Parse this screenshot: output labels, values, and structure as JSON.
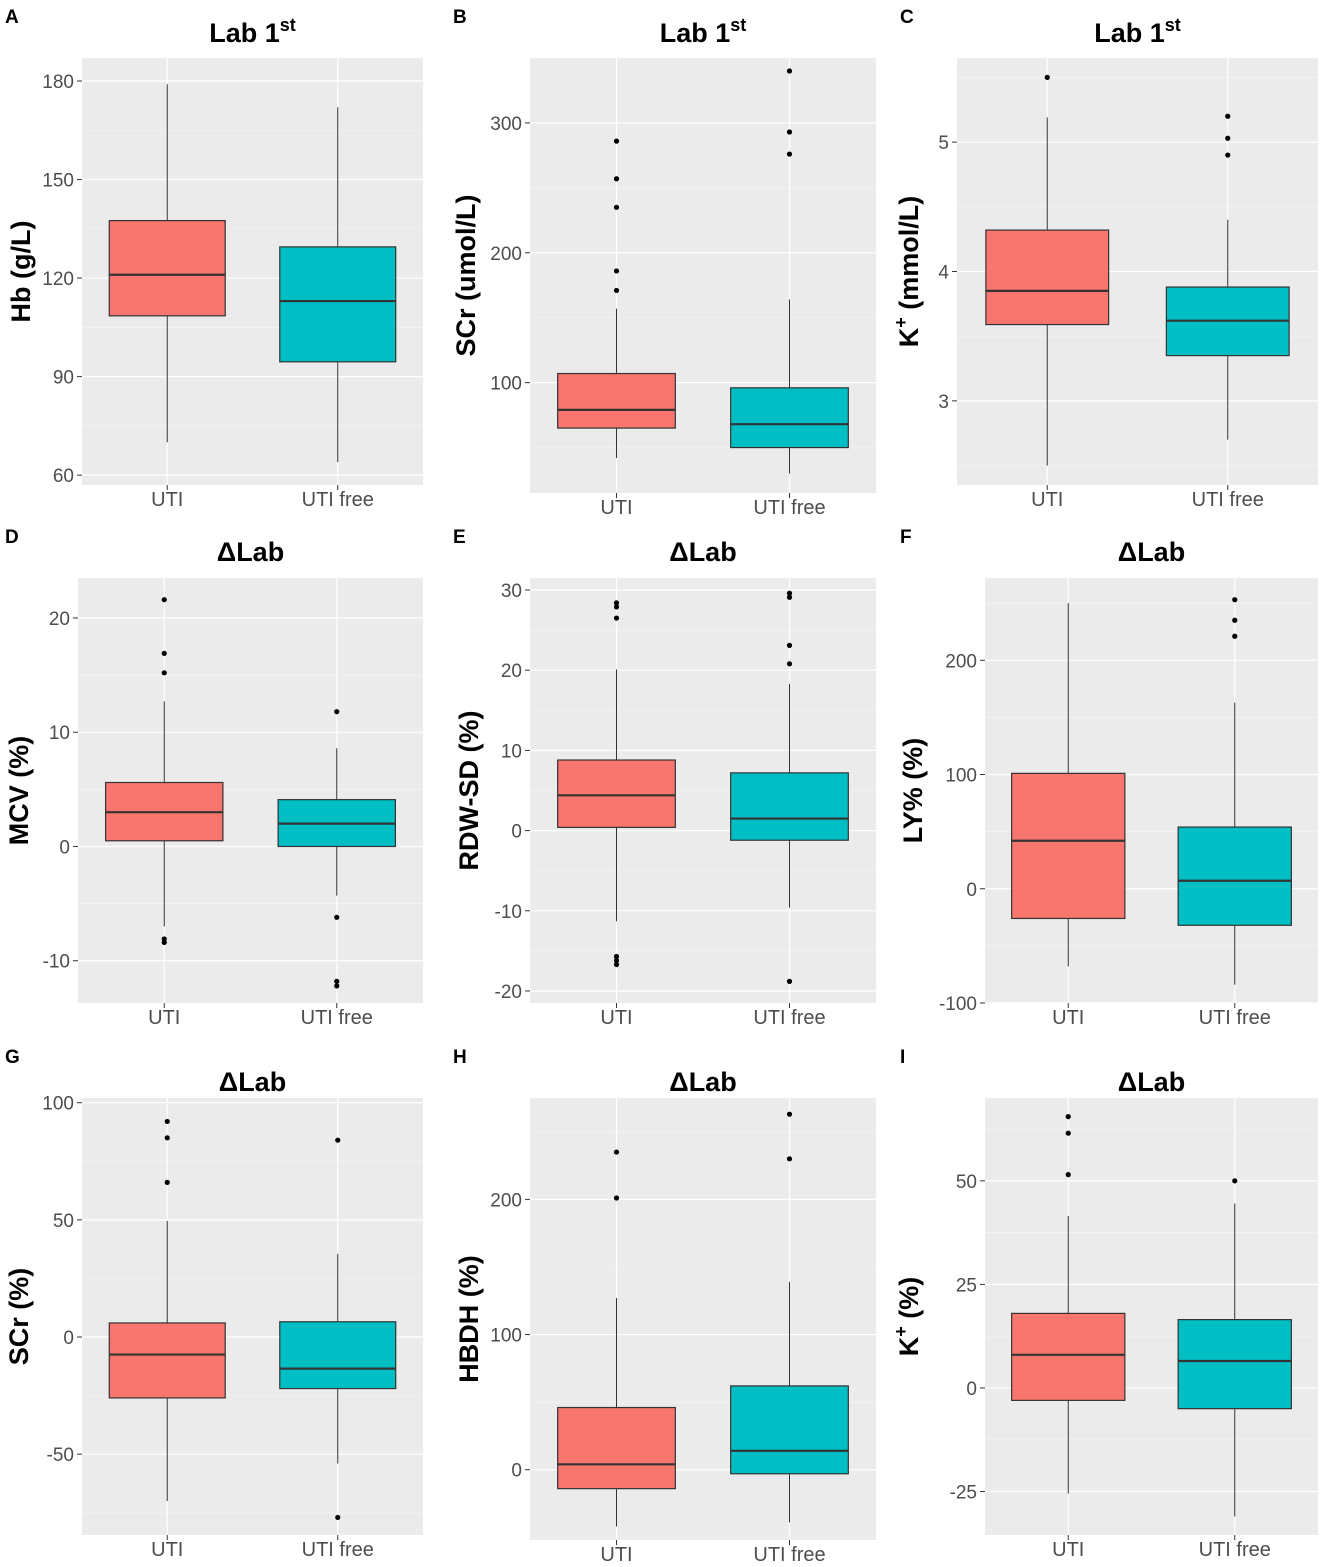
{
  "colors": {
    "uti": "#F8766D",
    "uti_free": "#00BFC4",
    "panel_bg": "#EBEBEB",
    "grid": "#FFFFFF"
  },
  "chart_data": [
    {
      "letter": "A",
      "type": "box",
      "title": "Lab 1st",
      "title_base": "Lab 1",
      "title_sup": "st",
      "ylabel": "Hb  (g/L)",
      "ylabel_base": "Hb  (g/L)",
      "ylabel_sup": "",
      "ylabel_rest": "",
      "ylim": [
        57,
        187
      ],
      "yticks": [
        60,
        90,
        120,
        150,
        180
      ],
      "ytick_labels": [
        "60",
        "90",
        "120",
        "150",
        "180"
      ],
      "categories": [
        "UTI",
        "UTI free"
      ],
      "series": [
        {
          "name": "UTI",
          "min": 70,
          "q1": 108.5,
          "median": 121,
          "q3": 137.5,
          "max": 179,
          "outliers": []
        },
        {
          "name": "UTI free",
          "min": 64,
          "q1": 94.5,
          "median": 113,
          "q3": 129.5,
          "max": 172,
          "outliers": []
        }
      ]
    },
    {
      "letter": "B",
      "type": "box",
      "title": "Lab 1st",
      "title_base": "Lab 1",
      "title_sup": "st",
      "ylabel": "SCr  (umol/L)",
      "ylabel_base": "SCr  (umol/L)",
      "ylabel_sup": "",
      "ylabel_rest": "",
      "ylim": [
        15,
        350
      ],
      "yticks": [
        100,
        200,
        300
      ],
      "ytick_labels": [
        "100",
        "200",
        "300"
      ],
      "categories": [
        "UTI",
        "UTI free"
      ],
      "series": [
        {
          "name": "UTI",
          "min": 42,
          "q1": 65,
          "median": 79,
          "q3": 107,
          "max": 157,
          "outliers": [
            171,
            186,
            235,
            257,
            286
          ]
        },
        {
          "name": "UTI free",
          "min": 30,
          "q1": 50,
          "median": 68,
          "q3": 96,
          "max": 164,
          "outliers": [
            276,
            293,
            340
          ]
        }
      ]
    },
    {
      "letter": "C",
      "type": "box",
      "title": "Lab 1st",
      "title_base": "Lab 1",
      "title_sup": "st",
      "ylabel": "K+  (mmol/L)",
      "ylabel_base": "K",
      "ylabel_sup": "+",
      "ylabel_rest": "  (mmol/L)",
      "ylim": [
        2.35,
        5.65
      ],
      "yticks": [
        3,
        4,
        5
      ],
      "ytick_labels": [
        "3",
        "4",
        "5"
      ],
      "categories": [
        "UTI",
        "UTI free"
      ],
      "series": [
        {
          "name": "UTI",
          "min": 2.5,
          "q1": 3.59,
          "median": 3.85,
          "q3": 4.32,
          "max": 5.19,
          "outliers": [
            5.5
          ]
        },
        {
          "name": "UTI free",
          "min": 2.7,
          "q1": 3.35,
          "median": 3.62,
          "q3": 3.88,
          "max": 4.4,
          "outliers": [
            4.9,
            5.03,
            5.2
          ]
        }
      ]
    },
    {
      "letter": "D",
      "type": "box",
      "title": "ΔLab",
      "title_base": "ΔLab",
      "title_sup": "",
      "ylabel": "MCV  (%)",
      "ylabel_base": "MCV  (%)",
      "ylabel_sup": "",
      "ylabel_rest": "",
      "ylim": [
        -13.7,
        23.5
      ],
      "yticks": [
        -10,
        0,
        10,
        20
      ],
      "ytick_labels": [
        "-10",
        "0",
        "10",
        "20"
      ],
      "categories": [
        "UTI",
        "UTI free"
      ],
      "series": [
        {
          "name": "UTI",
          "min": -7,
          "q1": 0.5,
          "median": 3,
          "q3": 5.6,
          "max": 12.7,
          "outliers": [
            -8.4,
            -8.1,
            15.2,
            16.9,
            21.6
          ]
        },
        {
          "name": "UTI free",
          "min": -4.3,
          "q1": 0,
          "median": 2,
          "q3": 4.1,
          "max": 8.6,
          "outliers": [
            -12.2,
            -11.8,
            -6.2,
            11.8
          ]
        }
      ]
    },
    {
      "letter": "E",
      "type": "box",
      "title": "ΔLab",
      "title_base": "ΔLab",
      "title_sup": "",
      "ylabel": "RDW-SD  (%)",
      "ylabel_base": "RDW-SD  (%)",
      "ylabel_sup": "",
      "ylabel_rest": "",
      "ylim": [
        -21.5,
        31.5
      ],
      "yticks": [
        -20,
        -10,
        0,
        10,
        20,
        30
      ],
      "ytick_labels": [
        "-20",
        "-10",
        "0",
        "10",
        "20",
        "30"
      ],
      "categories": [
        "UTI",
        "UTI free"
      ],
      "series": [
        {
          "name": "UTI",
          "min": -11.3,
          "q1": 0.4,
          "median": 4.4,
          "q3": 8.8,
          "max": 20.1,
          "outliers": [
            -16.7,
            -16.2,
            -15.7,
            26.5,
            27.9,
            28.4
          ]
        },
        {
          "name": "UTI free",
          "min": -9.6,
          "q1": -1.2,
          "median": 1.5,
          "q3": 7.2,
          "max": 18.3,
          "outliers": [
            -18.8,
            20.8,
            23.1,
            29.1,
            29.6
          ]
        }
      ]
    },
    {
      "letter": "F",
      "type": "box",
      "title": "ΔLab",
      "title_base": "ΔLab",
      "title_sup": "",
      "ylabel": "LY%  (%)",
      "ylabel_base": "LY%  (%)",
      "ylabel_sup": "",
      "ylabel_rest": "",
      "ylim": [
        -100,
        272
      ],
      "yticks": [
        -100,
        0,
        100,
        200
      ],
      "ytick_labels": [
        "-100",
        "0",
        "100",
        "200"
      ],
      "categories": [
        "UTI",
        "UTI free"
      ],
      "series": [
        {
          "name": "UTI",
          "min": -68,
          "q1": -26,
          "median": 42,
          "q3": 101,
          "max": 250,
          "outliers": []
        },
        {
          "name": "UTI free",
          "min": -84,
          "q1": -32,
          "median": 7,
          "q3": 54,
          "max": 163,
          "outliers": [
            221,
            235,
            253
          ]
        }
      ]
    },
    {
      "letter": "G",
      "type": "box",
      "title": "ΔLab",
      "title_base": "ΔLab",
      "title_sup": "",
      "ylabel": "SCr  (%)",
      "ylabel_base": "SCr  (%)",
      "ylabel_sup": "",
      "ylabel_rest": "",
      "ylim": [
        -84.5,
        102
      ],
      "yticks": [
        -50,
        0,
        50,
        100
      ],
      "ytick_labels": [
        "-50",
        "0",
        "50",
        "100"
      ],
      "categories": [
        "UTI",
        "UTI free"
      ],
      "series": [
        {
          "name": "UTI",
          "min": -70,
          "q1": -26,
          "median": -7.5,
          "q3": 6,
          "max": 49.5,
          "outliers": [
            66,
            85,
            92
          ]
        },
        {
          "name": "UTI free",
          "min": -54,
          "q1": -22,
          "median": -13.5,
          "q3": 6.5,
          "max": 35.5,
          "outliers": [
            -77,
            84
          ]
        }
      ]
    },
    {
      "letter": "H",
      "type": "box",
      "title": "ΔLab",
      "title_base": "ΔLab",
      "title_sup": "",
      "ylabel": "HBDH  (%)",
      "ylabel_base": "HBDH  (%)",
      "ylabel_sup": "",
      "ylabel_rest": "",
      "ylim": [
        -52,
        275
      ],
      "yticks": [
        0,
        100,
        200
      ],
      "ytick_labels": [
        "0",
        "100",
        "200"
      ],
      "categories": [
        "UTI",
        "UTI free"
      ],
      "series": [
        {
          "name": "UTI",
          "min": -42,
          "q1": -14,
          "median": 4,
          "q3": 46,
          "max": 127,
          "outliers": [
            201,
            235
          ]
        },
        {
          "name": "UTI free",
          "min": -39,
          "q1": -3,
          "median": 14,
          "q3": 62,
          "max": 139,
          "outliers": [
            230,
            263
          ]
        }
      ]
    },
    {
      "letter": "I",
      "type": "box",
      "title": "ΔLab",
      "title_base": "ΔLab",
      "title_sup": "",
      "ylabel": "K+  (%)",
      "ylabel_base": "K",
      "ylabel_sup": "+",
      "ylabel_rest": "  (%)",
      "ylim": [
        -35.5,
        70
      ],
      "yticks": [
        -25,
        0,
        25,
        50
      ],
      "ytick_labels": [
        "-25",
        "0",
        "25",
        "50"
      ],
      "categories": [
        "UTI",
        "UTI free"
      ],
      "series": [
        {
          "name": "UTI",
          "min": -25.5,
          "q1": -3,
          "median": 8,
          "q3": 18,
          "max": 41.5,
          "outliers": [
            51.5,
            61.5,
            65.5
          ]
        },
        {
          "name": "UTI free",
          "min": -31,
          "q1": -5,
          "median": 6.5,
          "q3": 16.5,
          "max": 44.5,
          "outliers": [
            50
          ]
        }
      ]
    }
  ]
}
